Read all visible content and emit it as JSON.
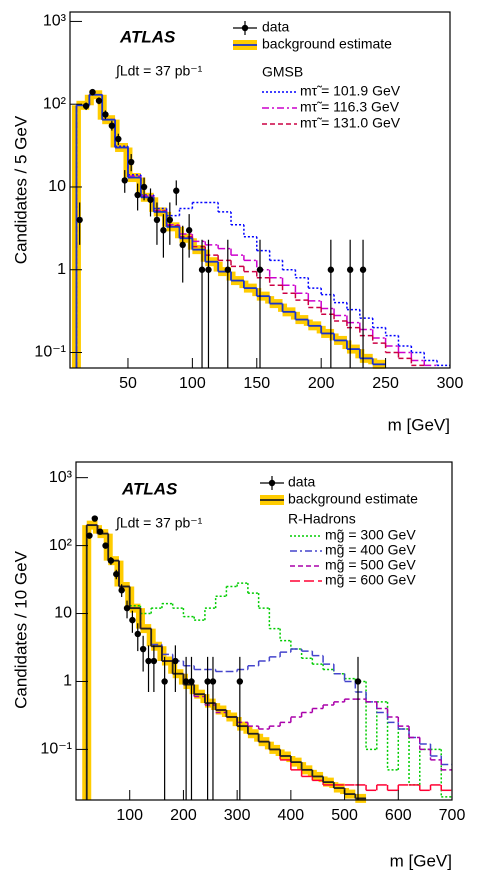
{
  "chart_data": [
    {
      "type": "histogram",
      "y_label": "Candidates / 5 GeV",
      "x_label": "m [GeV]",
      "experiment": "ATLAS",
      "luminosity": "∫Ldt = 37 pb⁻¹",
      "legend_title": "GMSB",
      "log_y": true,
      "xlim": [
        5,
        300
      ],
      "ylim": [
        0.065,
        1300
      ],
      "xticks": [
        50,
        100,
        150,
        200,
        250,
        300
      ],
      "yticks": [
        {
          "value": 0.1,
          "label": "10⁻¹"
        },
        1,
        10,
        {
          "value": 100,
          "label": "10²"
        },
        {
          "value": 1000,
          "label": "10³"
        }
      ],
      "bins": [
        10,
        20,
        30,
        40,
        50,
        60,
        70,
        80,
        90,
        100,
        110,
        120,
        130,
        140,
        150,
        160,
        170,
        180,
        190,
        200,
        210,
        220,
        230,
        240,
        250,
        260,
        270,
        280,
        290,
        300
      ],
      "background": {
        "name": "background estimate",
        "color": "#1a33cc",
        "band_color": "#ffcc00",
        "values": [
          97,
          130,
          65,
          30,
          13,
          7.5,
          5,
          3.3,
          2.4,
          1.75,
          1.25,
          0.95,
          0.74,
          0.6,
          0.48,
          0.39,
          0.31,
          0.25,
          0.21,
          0.17,
          0.14,
          0.11,
          0.085,
          0.072,
          null,
          null,
          null,
          null,
          null
        ]
      },
      "series": [
        {
          "name": "mτ̃ = 101.9 GeV",
          "color": "#0000ff",
          "style": "dotted",
          "values": [
            97,
            130,
            65,
            31,
            14,
            8,
            5.5,
            4.5,
            5.5,
            6.5,
            6.5,
            5,
            3.5,
            2.5,
            1.7,
            1.3,
            1.0,
            0.8,
            0.6,
            0.5,
            0.4,
            0.33,
            0.26,
            0.2,
            0.16,
            0.12,
            0.1,
            0.08,
            0.07
          ]
        },
        {
          "name": "mτ̃ = 116.3 GeV",
          "color": "#cc00cc",
          "style": "dashdot",
          "values": [
            97,
            130,
            65,
            30,
            13.5,
            7.8,
            5.2,
            3.5,
            2.7,
            2.2,
            2.0,
            1.8,
            1.5,
            1.3,
            1.0,
            0.8,
            0.65,
            0.52,
            0.42,
            0.34,
            0.28,
            0.23,
            0.19,
            0.15,
            0.12,
            0.1,
            0.08,
            0.07,
            null
          ]
        },
        {
          "name": "mτ̃ = 131.0 GeV",
          "color": "#cc0044",
          "style": "dashed",
          "values": [
            97,
            130,
            65,
            30,
            13,
            7.6,
            5.1,
            3.4,
            2.5,
            1.9,
            1.5,
            1.3,
            1.1,
            0.95,
            0.8,
            0.65,
            0.52,
            0.43,
            0.35,
            0.29,
            0.24,
            0.2,
            0.16,
            0.13,
            0.1,
            0.085,
            0.07,
            null,
            null
          ]
        }
      ],
      "points": {
        "name": "data",
        "color": "#000000",
        "x": [
          12.5,
          17.5,
          22.5,
          27.5,
          32.5,
          37.5,
          42.5,
          47.5,
          52.5,
          57.5,
          62.5,
          67.5,
          72.5,
          77.5,
          82.5,
          87.5,
          92.5,
          97.5,
          107.5,
          112.5,
          127.5,
          152.5,
          207.5,
          222.5,
          232.5
        ],
        "values": [
          4,
          95,
          140,
          110,
          75,
          55,
          38,
          12,
          20,
          8,
          10,
          7,
          4,
          3,
          4,
          9,
          2,
          3,
          1,
          1,
          1,
          1,
          1,
          1,
          1
        ],
        "low": [
          2,
          85,
          128,
          100,
          66,
          48,
          32,
          8.5,
          15.5,
          5.2,
          6.9,
          4.4,
          2,
          1.4,
          2,
          6,
          0.7,
          1.4,
          0.05,
          0.05,
          0.05,
          0.05,
          0.05,
          0.05,
          0.05
        ],
        "high": [
          6.5,
          105,
          152,
          121,
          84,
          63,
          44,
          16,
          25,
          11,
          13,
          9.6,
          6.5,
          4.7,
          6.5,
          12,
          3.4,
          4.7,
          2.3,
          2.3,
          2.3,
          2.3,
          2.3,
          2.3,
          2.3
        ]
      }
    },
    {
      "type": "histogram",
      "y_label": "Candidates / 10 GeV",
      "x_label": "m [GeV]",
      "experiment": "ATLAS",
      "luminosity": "∫Ldt = 37 pb⁻¹",
      "legend_title": "R-Hadrons",
      "log_y": true,
      "xlim": [
        0,
        700
      ],
      "ylim": [
        0.018,
        1700
      ],
      "xticks": [
        100,
        200,
        300,
        400,
        500,
        600,
        700
      ],
      "yticks": [
        {
          "value": 0.1,
          "label": "10⁻¹"
        },
        1,
        10,
        {
          "value": 100,
          "label": "10²"
        },
        {
          "value": 1000,
          "label": "10³"
        }
      ],
      "bins": [
        20,
        40,
        60,
        80,
        100,
        120,
        140,
        160,
        180,
        200,
        220,
        240,
        260,
        280,
        300,
        320,
        340,
        360,
        380,
        400,
        420,
        440,
        460,
        480,
        500,
        520,
        540,
        560,
        580,
        600,
        620,
        640,
        660,
        680,
        700
      ],
      "background": {
        "name": "background estimate",
        "color": "#222222",
        "band_color": "#ffcc00",
        "values": [
          200,
          150,
          60,
          25,
          12,
          6,
          3.3,
          2.0,
          1.3,
          0.9,
          0.65,
          0.48,
          0.38,
          0.3,
          0.22,
          0.17,
          0.13,
          0.1,
          0.08,
          0.065,
          0.05,
          0.04,
          0.033,
          0.027,
          0.022,
          0.019,
          null,
          null,
          null,
          null,
          null,
          null,
          null,
          null
        ]
      },
      "series": [
        {
          "name": "mg̃ = 300 GeV",
          "color": "#00cc00",
          "style": "dotted",
          "values": [
            200,
            150,
            60,
            25,
            13,
            10,
            12,
            14,
            12,
            9,
            8,
            12,
            18,
            25,
            28,
            20,
            12,
            6,
            4,
            3,
            2.2,
            1.8,
            1.5,
            1.3,
            1.1,
            1.0,
            0.1,
            0.5,
            0.05,
            0.2,
            0.03,
            0.1,
            0.1,
            0.02
          ]
        },
        {
          "name": "mg̃ = 400 GeV",
          "color": "#4444cc",
          "style": "dashdot",
          "values": [
            200,
            150,
            60,
            25,
            12,
            6,
            3.5,
            2.5,
            2,
            1.7,
            1.5,
            1.5,
            1.4,
            1.4,
            1.5,
            1.7,
            2,
            2.3,
            2.7,
            3,
            2.8,
            2.4,
            1.8,
            1.3,
            1.0,
            0.7,
            0.5,
            0.35,
            0.25,
            0.2,
            0.15,
            0.12,
            0.08,
            0.06
          ]
        },
        {
          "name": "mg̃ = 500 GeV",
          "color": "#aa00aa",
          "style": "dashed",
          "values": [
            200,
            150,
            60,
            25,
            12,
            6,
            3.3,
            2.0,
            1.3,
            0.9,
            0.6,
            0.45,
            0.35,
            0.3,
            0.25,
            0.22,
            0.2,
            0.22,
            0.25,
            0.3,
            0.35,
            0.4,
            0.45,
            0.5,
            0.55,
            0.55,
            0.5,
            0.4,
            0.3,
            0.22,
            0.15,
            0.1,
            0.07,
            0.05
          ]
        },
        {
          "name": "mg̃ = 600 GeV",
          "color": "#ff0033",
          "style": "longdash",
          "values": [
            200,
            150,
            60,
            25,
            12,
            6,
            3.3,
            2.0,
            1.3,
            0.9,
            0.65,
            0.48,
            0.38,
            0.3,
            0.22,
            0.17,
            0.13,
            0.1,
            0.07,
            0.05,
            0.04,
            0.035,
            0.03,
            0.03,
            0.03,
            0.03,
            0.025,
            0.03,
            0.025,
            0.03,
            0.03,
            0.025,
            0.03,
            0.025
          ]
        }
      ],
      "points": {
        "name": "data",
        "color": "#000000",
        "x": [
          25,
          35,
          45,
          55,
          65,
          75,
          85,
          95,
          105,
          115,
          125,
          135,
          145,
          165,
          185,
          205,
          215,
          245,
          255,
          305,
          525
        ],
        "values": [
          140,
          250,
          160,
          100,
          60,
          38,
          22,
          12,
          8,
          5,
          3,
          2,
          2,
          1,
          2,
          1,
          1,
          1,
          1,
          1,
          1
        ],
        "low": [
          128,
          234,
          147,
          90,
          52,
          32,
          17.5,
          8.5,
          5.2,
          2.8,
          1.4,
          0.7,
          0.7,
          0.01,
          0.7,
          0.01,
          0.01,
          0.01,
          0.01,
          0.01,
          0.01
        ],
        "high": [
          152,
          266,
          173,
          110,
          68,
          44,
          27,
          15.5,
          11,
          7.2,
          4.7,
          3.4,
          3.4,
          2.3,
          3.4,
          2.3,
          2.3,
          2.3,
          2.3,
          2.3,
          2.3
        ]
      }
    }
  ]
}
